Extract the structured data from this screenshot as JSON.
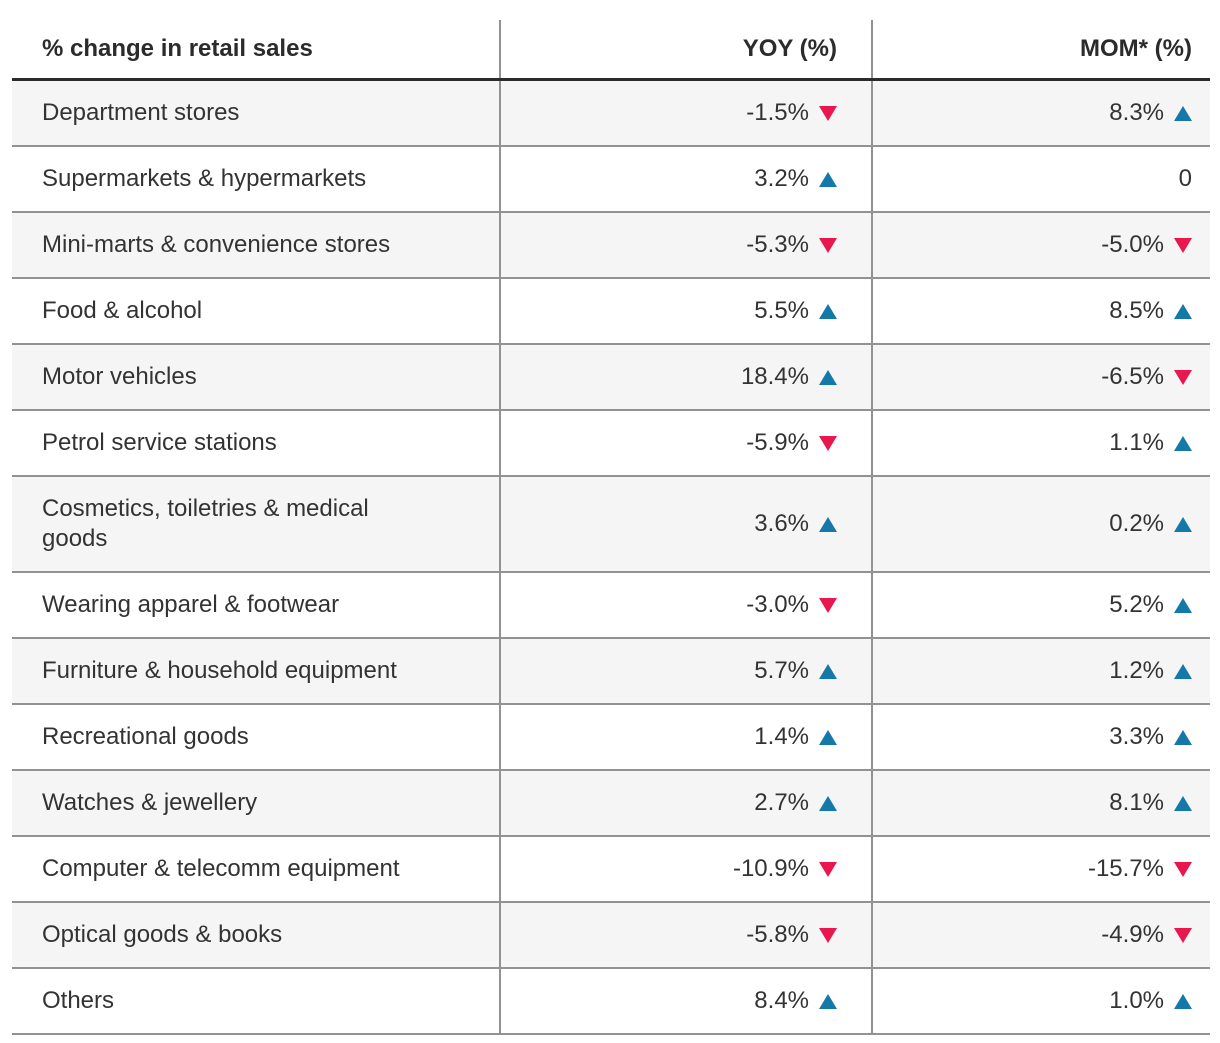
{
  "colors": {
    "up_arrow": "#1478a8",
    "down_arrow": "#e8174d",
    "text": "#333333",
    "stripe_row_background": "#f5f5f6",
    "grid_line": "#929292",
    "header_underline": "#2b2b2b"
  },
  "chart_data": {
    "type": "table",
    "title": "% change in retail sales",
    "layout": {
      "zebra_striping": true,
      "first_row_shaded": true,
      "value_alignment": "right"
    },
    "columns": [
      "% change in retail sales",
      "YOY (%)",
      "MOM* (%)"
    ],
    "rows": [
      {
        "label": "Department stores",
        "yoy": {
          "value": "-1.5%",
          "number": -1.5,
          "direction": "down"
        },
        "mom": {
          "value": "8.3%",
          "number": 8.3,
          "direction": "up"
        }
      },
      {
        "label": "Supermarkets & hypermarkets",
        "yoy": {
          "value": "3.2%",
          "number": 3.2,
          "direction": "up"
        },
        "mom": {
          "value": "0",
          "number": 0,
          "direction": "none"
        }
      },
      {
        "label": "Mini-marts & convenience stores",
        "yoy": {
          "value": "-5.3%",
          "number": -5.3,
          "direction": "down"
        },
        "mom": {
          "value": "-5.0%",
          "number": -5.0,
          "direction": "down"
        }
      },
      {
        "label": "Food & alcohol",
        "yoy": {
          "value": "5.5%",
          "number": 5.5,
          "direction": "up"
        },
        "mom": {
          "value": "8.5%",
          "number": 8.5,
          "direction": "up"
        }
      },
      {
        "label": "Motor vehicles",
        "yoy": {
          "value": "18.4%",
          "number": 18.4,
          "direction": "up"
        },
        "mom": {
          "value": "-6.5%",
          "number": -6.5,
          "direction": "down"
        }
      },
      {
        "label": "Petrol service stations",
        "yoy": {
          "value": "-5.9%",
          "number": -5.9,
          "direction": "down"
        },
        "mom": {
          "value": "1.1%",
          "number": 1.1,
          "direction": "up"
        }
      },
      {
        "label": "Cosmetics, toiletries & medical goods",
        "yoy": {
          "value": "3.6%",
          "number": 3.6,
          "direction": "up"
        },
        "mom": {
          "value": "0.2%",
          "number": 0.2,
          "direction": "up"
        }
      },
      {
        "label": "Wearing apparel & footwear",
        "yoy": {
          "value": "-3.0%",
          "number": -3.0,
          "direction": "down"
        },
        "mom": {
          "value": "5.2%",
          "number": 5.2,
          "direction": "up"
        }
      },
      {
        "label": "Furniture & household equipment",
        "yoy": {
          "value": "5.7%",
          "number": 5.7,
          "direction": "up"
        },
        "mom": {
          "value": "1.2%",
          "number": 1.2,
          "direction": "up"
        }
      },
      {
        "label": "Recreational goods",
        "yoy": {
          "value": "1.4%",
          "number": 1.4,
          "direction": "up"
        },
        "mom": {
          "value": "3.3%",
          "number": 3.3,
          "direction": "up"
        }
      },
      {
        "label": "Watches & jewellery",
        "yoy": {
          "value": "2.7%",
          "number": 2.7,
          "direction": "up"
        },
        "mom": {
          "value": "8.1%",
          "number": 8.1,
          "direction": "up"
        }
      },
      {
        "label": "Computer & telecomm equipment",
        "yoy": {
          "value": "-10.9%",
          "number": -10.9,
          "direction": "down"
        },
        "mom": {
          "value": "-15.7%",
          "number": -15.7,
          "direction": "down"
        }
      },
      {
        "label": "Optical goods & books",
        "yoy": {
          "value": "-5.8%",
          "number": -5.8,
          "direction": "down"
        },
        "mom": {
          "value": "-4.9%",
          "number": -4.9,
          "direction": "down"
        }
      },
      {
        "label": "Others",
        "yoy": {
          "value": "8.4%",
          "number": 8.4,
          "direction": "up"
        },
        "mom": {
          "value": "1.0%",
          "number": 1.0,
          "direction": "up"
        }
      }
    ]
  }
}
